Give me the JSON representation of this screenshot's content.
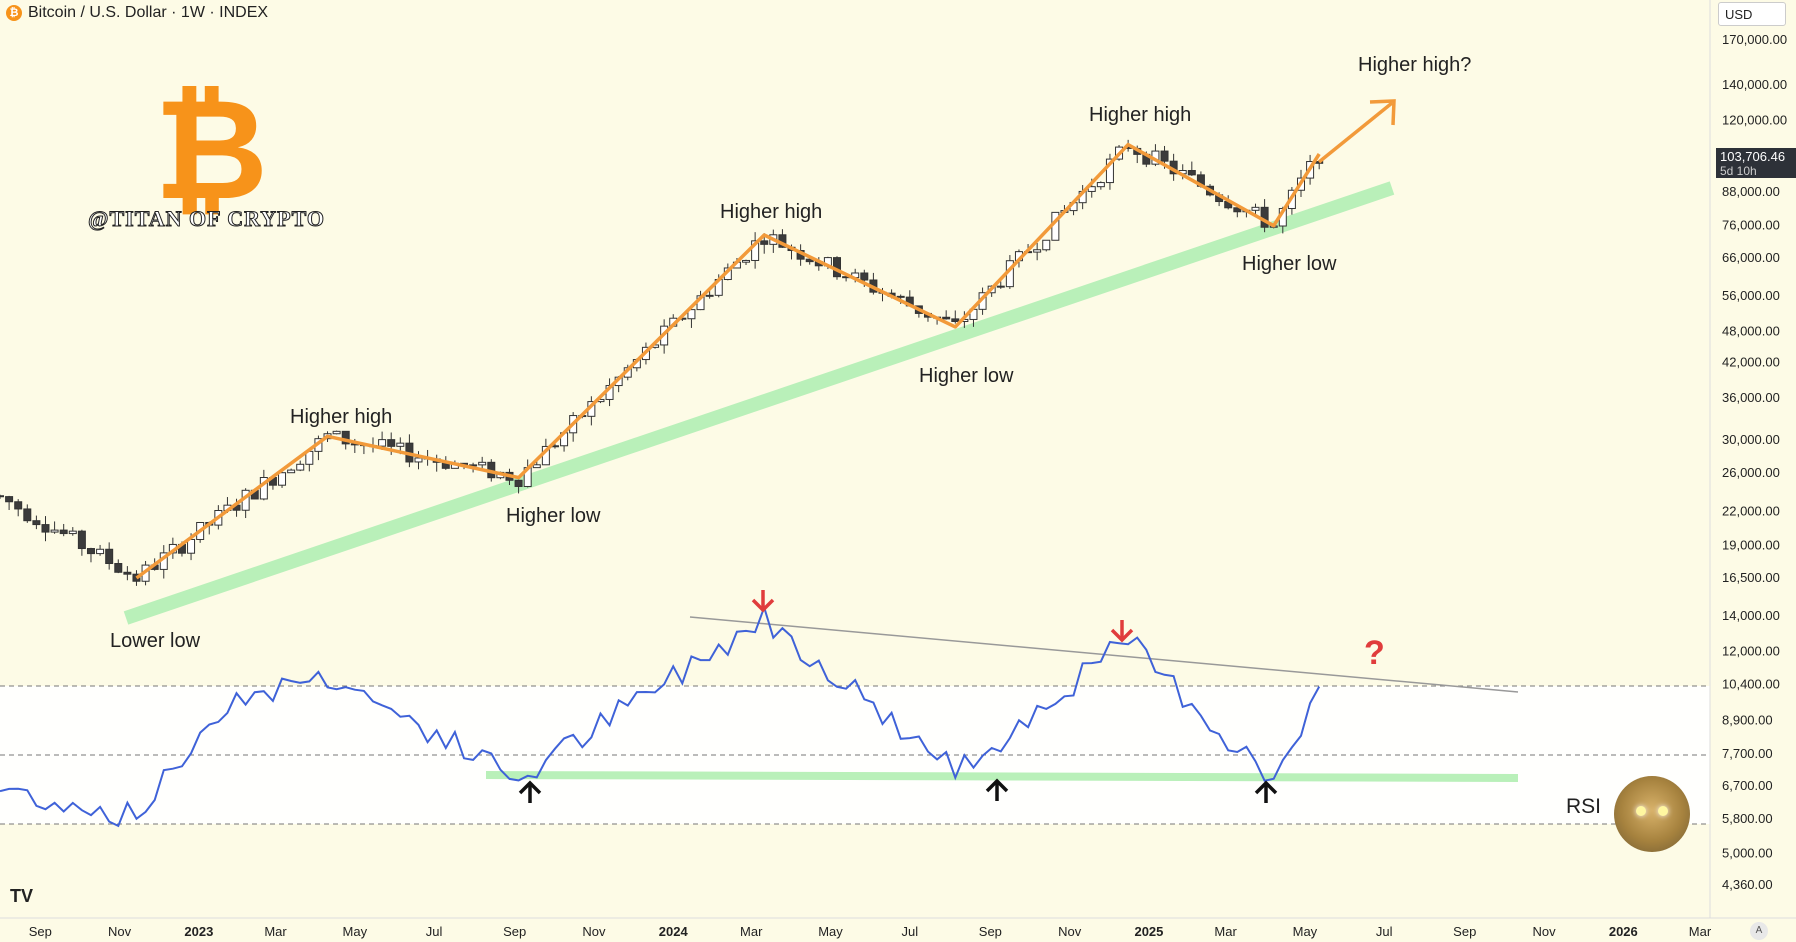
{
  "header": {
    "coin_glyph": "₿",
    "title": "Bitcoin / U.S. Dollar · 1W · INDEX"
  },
  "brand": {
    "handle": "@TITAN OF CRYPTO",
    "logo": "bitcoin-logo"
  },
  "currency_selector": "USD",
  "last_price": {
    "value": "103,706.46",
    "countdown": "5d 10h"
  },
  "rsi_label": "RSI",
  "tv_logo": "TV",
  "auto_scale_label": "A",
  "colors": {
    "background": "#fdfbe6",
    "rsi_panel": "#ffffff",
    "candle_up": "#ffffff",
    "candle_down": "#3b3b3b",
    "trend_orange": "#f29a3a",
    "support_green": "#b9f0b9",
    "rsi_line": "#3f62d8",
    "arrow_red": "#e03c3c",
    "question_red": "#e03c3c"
  },
  "annotations": [
    "Lower low",
    "Higher high",
    "Higher low",
    "Higher high",
    "Higher low",
    "Higher high",
    "Higher low",
    "Higher high?"
  ],
  "rsi_question": "?",
  "chart_data": {
    "type": "candlestick",
    "title": "Bitcoin / U.S. Dollar · 1W · INDEX",
    "price_axis_labels": [
      "170,000.00",
      "140,000.00",
      "120,000.00",
      "88,000.00",
      "76,000.00",
      "66,000.00",
      "56,000.00",
      "48,000.00",
      "42,000.00",
      "36,000.00",
      "30,000.00",
      "26,000.00",
      "22,000.00",
      "19,000.00",
      "16,500.00",
      "14,000.00",
      "12,000.00",
      "10,400.00",
      "8,900.00",
      "7,700.00",
      "6,700.00",
      "5,800.00",
      "5,000.00",
      "4,360.00"
    ],
    "time_axis_labels": [
      {
        "label": "Sep",
        "bold": false
      },
      {
        "label": "Nov",
        "bold": false
      },
      {
        "label": "2023",
        "bold": true
      },
      {
        "label": "Mar",
        "bold": false
      },
      {
        "label": "May",
        "bold": false
      },
      {
        "label": "Jul",
        "bold": false
      },
      {
        "label": "Sep",
        "bold": false
      },
      {
        "label": "Nov",
        "bold": false
      },
      {
        "label": "2024",
        "bold": true
      },
      {
        "label": "Mar",
        "bold": false
      },
      {
        "label": "May",
        "bold": false
      },
      {
        "label": "Jul",
        "bold": false
      },
      {
        "label": "Sep",
        "bold": false
      },
      {
        "label": "Nov",
        "bold": false
      },
      {
        "label": "2025",
        "bold": true
      },
      {
        "label": "Mar",
        "bold": false
      },
      {
        "label": "May",
        "bold": false
      },
      {
        "label": "Jul",
        "bold": false
      },
      {
        "label": "Sep",
        "bold": false
      },
      {
        "label": "Nov",
        "bold": false
      },
      {
        "label": "2026",
        "bold": true
      },
      {
        "label": "Mar",
        "bold": false
      }
    ],
    "price_swings": [
      {
        "date": "2022-08-01",
        "price": 23500
      },
      {
        "date": "2022-11-14",
        "price": 16500
      },
      {
        "date": "2023-04-10",
        "price": 30500
      },
      {
        "date": "2023-09-04",
        "price": 25500
      },
      {
        "date": "2024-03-11",
        "price": 73000
      },
      {
        "date": "2024-08-05",
        "price": 49000
      },
      {
        "date": "2024-12-16",
        "price": 108000
      },
      {
        "date": "2025-04-07",
        "price": 76000
      },
      {
        "date": "2025-05-12",
        "price": 103706
      }
    ],
    "rsi_swings": [
      {
        "date": "2022-08-01",
        "rsi": 40
      },
      {
        "date": "2022-11-14",
        "rsi": 32
      },
      {
        "date": "2023-01-23",
        "rsi": 66
      },
      {
        "date": "2023-04-10",
        "rsi": 73
      },
      {
        "date": "2023-09-04",
        "rsi": 43
      },
      {
        "date": "2024-03-11",
        "rsi": 90
      },
      {
        "date": "2024-08-05",
        "rsi": 45
      },
      {
        "date": "2024-12-16",
        "rsi": 83
      },
      {
        "date": "2025-04-07",
        "rsi": 42
      },
      {
        "date": "2025-05-12",
        "rsi": 66
      }
    ],
    "rsi_levels": [
      70,
      50,
      30
    ],
    "log_scale": true,
    "last_price": 103706.46
  }
}
